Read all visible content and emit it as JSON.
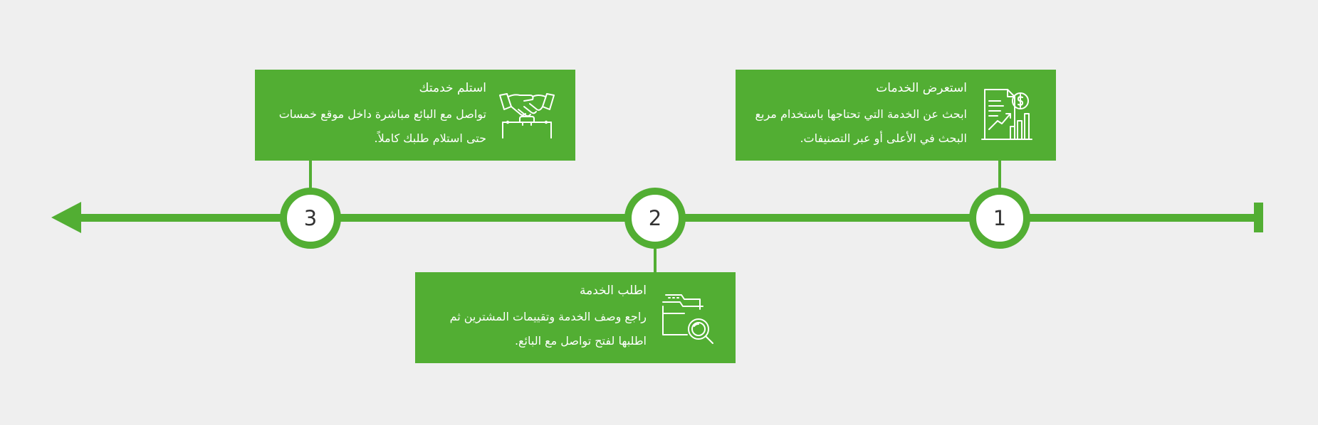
{
  "colors": {
    "accent": "#52ae33",
    "background": "#efefef",
    "card_text": "#ffffff"
  },
  "steps": [
    {
      "number": "1",
      "title": "استعرض الخدمات",
      "description": "ابحث عن الخدمة التي تحتاجها باستخدام مربع البحث في الأعلى أو عبر التصنيفات.",
      "icon": "document-chart-icon"
    },
    {
      "number": "2",
      "title": "اطلب الخدمة",
      "description": "راجع وصف الخدمة وتقييمات المشترين ثم اطلبها لفتح تواصل مع البائع.",
      "icon": "folder-search-icon"
    },
    {
      "number": "3",
      "title": "استلم خدمتك",
      "description": "تواصل مع البائع مباشرة داخل موقع خمسات حتى استلام طلبك كاملاً.",
      "icon": "handshake-icon"
    }
  ]
}
